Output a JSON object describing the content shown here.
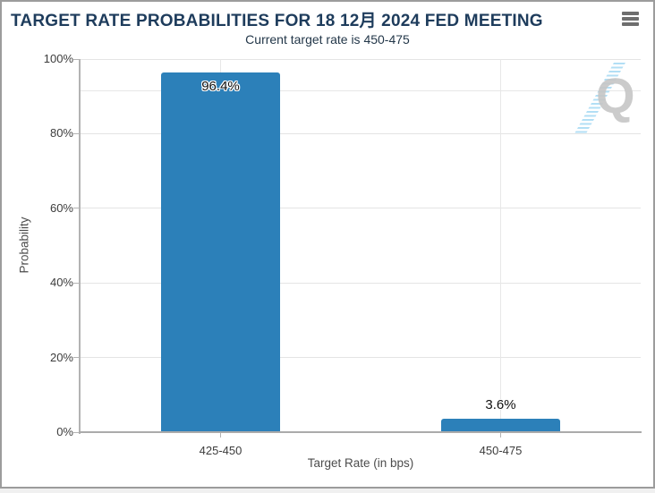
{
  "header": {
    "title": "TARGET RATE PROBABILITIES FOR 18 12月 2024 FED MEETING",
    "subtitle": "Current target rate is 450-475"
  },
  "menu": {
    "icon": "hamburger-icon"
  },
  "watermark": {
    "letter": "Q"
  },
  "chart_data": {
    "type": "bar",
    "title": "TARGET RATE PROBABILITIES FOR 18 12月 2024 FED MEETING",
    "subtitle": "Current target rate is 450-475",
    "categories": [
      "425-450",
      "450-475"
    ],
    "values": [
      96.4,
      3.6
    ],
    "value_labels": [
      "96.4%",
      "3.6%"
    ],
    "xlabel": "Target Rate (in bps)",
    "ylabel": "Probability",
    "ylim": [
      0,
      100
    ],
    "ytick_interval": 20,
    "ytick_labels": [
      "0%",
      "20%",
      "40%",
      "60%",
      "80%",
      "100%"
    ],
    "extra_gridline_value": 91.4,
    "grid": true,
    "legend": "none",
    "bar_color": "#2c80b9"
  },
  "colors": {
    "title": "#1e3c5c",
    "subtitle": "#233749",
    "bar": "#2c80b9",
    "gridline": "#e4e4e4",
    "axis_line": "#b0b0b0",
    "tick_label": "#3c3c3c",
    "axis_title": "#4c4c4c",
    "widget_border": "#9c9c9c",
    "watermark_gray": "#c6c6c6",
    "watermark_blue": "#a5d9f3"
  }
}
